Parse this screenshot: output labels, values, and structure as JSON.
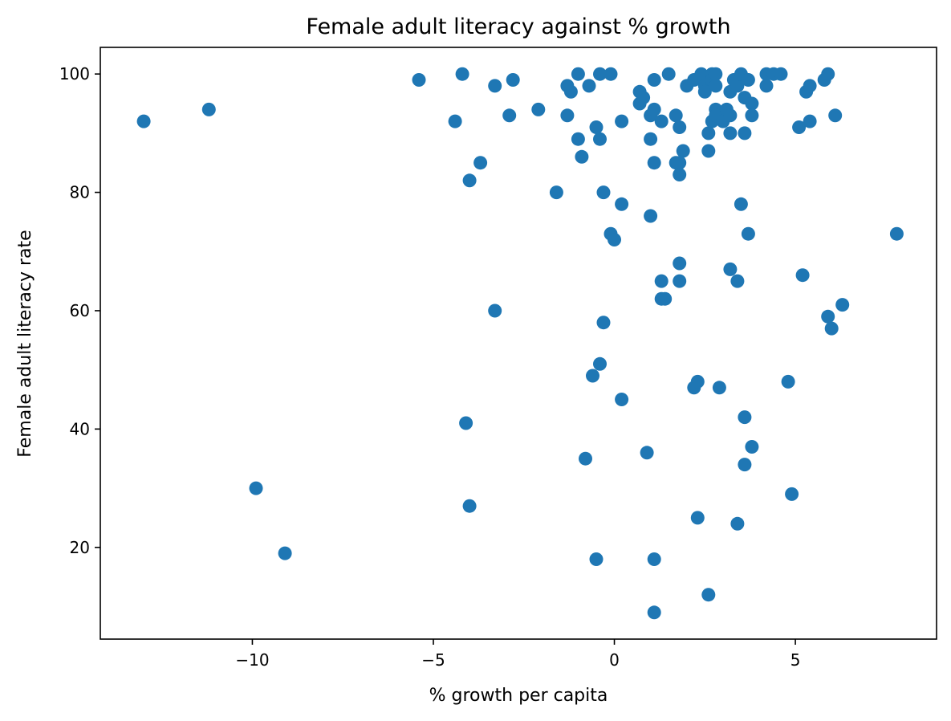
{
  "chart_data": {
    "type": "scatter",
    "title": "Female adult literacy against % growth",
    "xlabel": "% growth per capita",
    "ylabel": "Female adult literacy rate",
    "xlim": [
      -14.2,
      8.9
    ],
    "ylim": [
      4.5,
      104.5
    ],
    "xticks": [
      -10,
      -5,
      0,
      5
    ],
    "xtick_labels": [
      "−10",
      "−5",
      "0",
      "5"
    ],
    "yticks": [
      20,
      40,
      60,
      80,
      100
    ],
    "ytick_labels": [
      "20",
      "40",
      "60",
      "80",
      "100"
    ],
    "grid": false,
    "marker_color": "#1f77b4",
    "points": [
      [
        -13.0,
        92
      ],
      [
        -11.2,
        94
      ],
      [
        -9.9,
        30
      ],
      [
        -9.1,
        19
      ],
      [
        -5.4,
        99
      ],
      [
        -4.4,
        92
      ],
      [
        -4.2,
        100
      ],
      [
        -4.1,
        41
      ],
      [
        -4.0,
        82
      ],
      [
        -4.0,
        27
      ],
      [
        -3.7,
        85
      ],
      [
        -3.3,
        98
      ],
      [
        -3.3,
        60
      ],
      [
        -2.9,
        93
      ],
      [
        -2.8,
        99
      ],
      [
        -2.1,
        94
      ],
      [
        -1.6,
        80
      ],
      [
        -1.3,
        98
      ],
      [
        -1.3,
        93
      ],
      [
        -1.2,
        97
      ],
      [
        -1.0,
        100
      ],
      [
        -1.0,
        89
      ],
      [
        -0.9,
        86
      ],
      [
        -0.8,
        35
      ],
      [
        -0.7,
        98
      ],
      [
        -0.6,
        49
      ],
      [
        -0.5,
        91
      ],
      [
        -0.5,
        18
      ],
      [
        -0.4,
        100
      ],
      [
        -0.4,
        89
      ],
      [
        -0.4,
        51
      ],
      [
        -0.3,
        80
      ],
      [
        -0.3,
        58
      ],
      [
        -0.1,
        100
      ],
      [
        -0.1,
        73
      ],
      [
        0.0,
        72
      ],
      [
        0.2,
        92
      ],
      [
        0.2,
        78
      ],
      [
        0.2,
        45
      ],
      [
        0.7,
        97
      ],
      [
        0.7,
        95
      ],
      [
        0.8,
        96
      ],
      [
        0.9,
        36
      ],
      [
        1.0,
        93
      ],
      [
        1.0,
        89
      ],
      [
        1.0,
        76
      ],
      [
        1.1,
        99
      ],
      [
        1.1,
        94
      ],
      [
        1.1,
        85
      ],
      [
        1.1,
        18
      ],
      [
        1.1,
        9
      ],
      [
        1.3,
        92
      ],
      [
        1.3,
        65
      ],
      [
        1.3,
        62
      ],
      [
        1.4,
        62
      ],
      [
        1.5,
        100
      ],
      [
        1.7,
        93
      ],
      [
        1.7,
        85
      ],
      [
        1.8,
        91
      ],
      [
        1.8,
        85
      ],
      [
        1.8,
        83
      ],
      [
        1.8,
        68
      ],
      [
        1.8,
        65
      ],
      [
        1.9,
        87
      ],
      [
        2.0,
        98
      ],
      [
        2.2,
        99
      ],
      [
        2.2,
        47
      ],
      [
        2.3,
        48
      ],
      [
        2.3,
        25
      ],
      [
        2.4,
        100
      ],
      [
        2.5,
        98
      ],
      [
        2.5,
        97
      ],
      [
        2.6,
        90
      ],
      [
        2.6,
        87
      ],
      [
        2.6,
        12
      ],
      [
        2.7,
        100
      ],
      [
        2.7,
        92
      ],
      [
        2.7,
        99
      ],
      [
        2.8,
        100
      ],
      [
        2.8,
        98
      ],
      [
        2.8,
        94
      ],
      [
        2.8,
        93
      ],
      [
        2.9,
        47
      ],
      [
        3.0,
        92
      ],
      [
        3.1,
        94
      ],
      [
        3.2,
        97
      ],
      [
        3.2,
        93
      ],
      [
        3.2,
        90
      ],
      [
        3.2,
        67
      ],
      [
        3.3,
        99
      ],
      [
        3.4,
        98
      ],
      [
        3.4,
        65
      ],
      [
        3.4,
        24
      ],
      [
        3.5,
        100
      ],
      [
        3.5,
        78
      ],
      [
        3.6,
        96
      ],
      [
        3.6,
        90
      ],
      [
        3.6,
        42
      ],
      [
        3.6,
        34
      ],
      [
        3.7,
        99
      ],
      [
        3.7,
        73
      ],
      [
        3.8,
        95
      ],
      [
        3.8,
        93
      ],
      [
        3.8,
        37
      ],
      [
        4.2,
        100
      ],
      [
        4.2,
        98
      ],
      [
        4.4,
        100
      ],
      [
        4.6,
        100
      ],
      [
        4.8,
        48
      ],
      [
        4.9,
        29
      ],
      [
        5.1,
        91
      ],
      [
        5.2,
        66
      ],
      [
        5.3,
        97
      ],
      [
        5.4,
        98
      ],
      [
        5.4,
        92
      ],
      [
        5.8,
        99
      ],
      [
        5.9,
        100
      ],
      [
        5.9,
        59
      ],
      [
        6.0,
        57
      ],
      [
        6.1,
        93
      ],
      [
        6.3,
        61
      ],
      [
        7.8,
        73
      ]
    ]
  }
}
